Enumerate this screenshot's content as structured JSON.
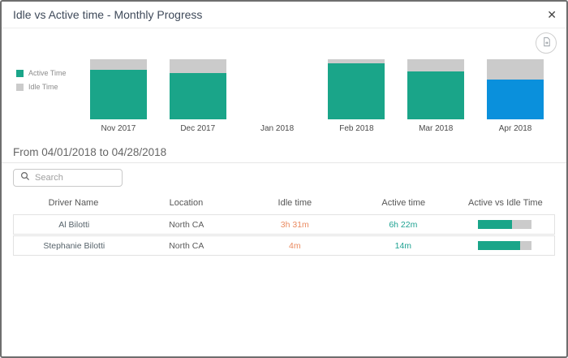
{
  "dialog": {
    "title": "Idle vs Active time - Monthly Progress",
    "close_glyph": "✕"
  },
  "chart_data": {
    "type": "bar",
    "subtype": "stacked-100-percent",
    "categories": [
      "Nov 2017",
      "Dec 2017",
      "Jan 2018",
      "Feb 2018",
      "Mar 2018",
      "Apr 2018"
    ],
    "series": [
      {
        "name": "Active Time",
        "color": "#1aa589",
        "values_pct": [
          82,
          77,
          null,
          93,
          80,
          66
        ]
      },
      {
        "name": "Idle Time",
        "color": "#cbcbcb",
        "values_pct": [
          18,
          23,
          null,
          7,
          20,
          34
        ]
      }
    ],
    "selected_category": "Apr 2018",
    "selected_active_color": "#0a90dc",
    "legend_position": "left",
    "ylim": [
      0,
      100
    ],
    "grid": false
  },
  "filter": {
    "date_range": "From 04/01/2018 to 04/28/2018"
  },
  "search": {
    "placeholder": "Search"
  },
  "table": {
    "headers": [
      "Driver Name",
      "Location",
      "Idle time",
      "Active time",
      "Active vs Idle Time"
    ],
    "rows": [
      {
        "driver": "Al Bilotti",
        "location": "North CA",
        "idle": "3h 31m",
        "active": "6h 22m",
        "active_vs_idle_pct": 64
      },
      {
        "driver": "Stephanie Bilotti",
        "location": "North CA",
        "idle": "4m",
        "active": "14m",
        "active_vs_idle_pct": 78
      }
    ]
  },
  "colors": {
    "active": "#1aa589",
    "idle": "#cbcbcb",
    "selected": "#0a90dc",
    "idle_text": "#ea8a60",
    "active_text": "#1fa292"
  }
}
